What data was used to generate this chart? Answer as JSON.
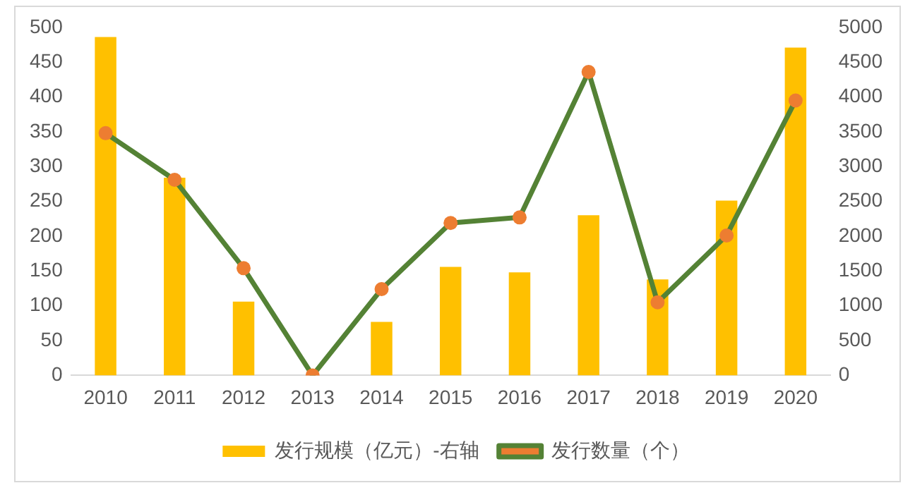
{
  "chart_data": {
    "type": "bar",
    "categories": [
      "2010",
      "2011",
      "2012",
      "2013",
      "2014",
      "2015",
      "2016",
      "2017",
      "2018",
      "2019",
      "2020"
    ],
    "series": [
      {
        "name": "发行规模（亿元）-右轴",
        "axis": "y2",
        "color": "#ffc000",
        "values": [
          4860,
          2840,
          1060,
          0,
          770,
          1560,
          1480,
          2300,
          1380,
          2510,
          4710
        ]
      },
      {
        "name": "发行数量（个）",
        "type": "line",
        "color": "#548235",
        "marker": "circle",
        "values": [
          348,
          281,
          154,
          0,
          124,
          219,
          227,
          436,
          105,
          201,
          395
        ]
      }
    ],
    "ylim": [
      0,
      500
    ],
    "yticks": [
      0,
      50,
      100,
      150,
      200,
      250,
      300,
      350,
      400,
      450,
      500
    ],
    "y2lim": [
      0,
      5000
    ],
    "y2ticks": [
      0,
      500,
      1000,
      1500,
      2000,
      2500,
      3000,
      3500,
      4000,
      4500,
      5000
    ],
    "grid": false,
    "legend": "bottom"
  }
}
